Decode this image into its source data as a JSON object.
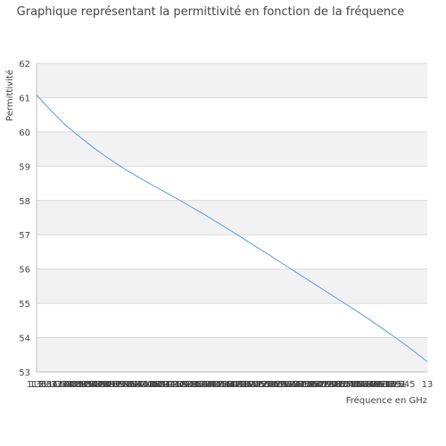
{
  "chart_data": {
    "type": "line",
    "title": "Graphique représentant la permittivité en fonction de la fréquence",
    "xlabel": "Fréquence en GHz",
    "ylabel": "Permittivité",
    "ylim": [
      53,
      62
    ],
    "yticks": [
      "53",
      "54",
      "55",
      "56",
      "57",
      "58",
      "59",
      "60",
      "61",
      "62"
    ],
    "xticks": [
      "1.3",
      "1.3636",
      "1.3673",
      "1.3727",
      "1.3764",
      "1.3782",
      "1.3809",
      "1.3827",
      "1.3845",
      "1.3854",
      "1.3864",
      "1.3873",
      "1.3891",
      "1.3909",
      "1.3918",
      "1.3927",
      "1.3936",
      "1.3945",
      "1.3964",
      "1.3982",
      "1.4",
      "1.4018",
      "1.4036",
      "1.4055",
      "1.4073",
      "1.4091",
      "1.4109",
      "1.4127",
      "1.4155",
      "1.4182",
      "1.4218",
      "1.4255",
      "1.4291",
      "1.4327",
      "1.4364",
      "1.44",
      "1.4436",
      "1.4473",
      "1.4518",
      "1.4564",
      "1.4618",
      "1.4673",
      "1.4727",
      "1.48",
      "1.4873",
      "1.4945",
      "1.5036",
      "1.5127",
      "1.5236",
      "1.5345",
      "1.5473",
      "1.56",
      "1.5764",
      "1.5927",
      "1.6127",
      "1.6345",
      "1.6618",
      "1.6945",
      "1.7364",
      "1.7873",
      "1.8509",
      "1.9291",
      "2.0218",
      "2.1345",
      "2.2727",
      "2.4364",
      "2.6273",
      "2.8545",
      "3.1218",
      "3.4345",
      "3.8018",
      "4.2345",
      "4.7455",
      "5.3491",
      "6.0636",
      "6.9182",
      "7.9455",
      "9.1891",
      "10.7",
      "12.545",
      "13"
    ],
    "series": [
      {
        "values": [
          61.08,
          60.62,
          60.2,
          59.85,
          59.52,
          59.22,
          58.94,
          58.69,
          58.45,
          58.22,
          57.98,
          57.74,
          57.49,
          57.23,
          56.97,
          56.7,
          56.43,
          56.16,
          55.89,
          55.62,
          55.35,
          55.08,
          54.81,
          54.53,
          54.24,
          53.94,
          53.63,
          53.3
        ]
      }
    ],
    "grid": true,
    "colors": {
      "line": "#5b9bd5",
      "band": "#f2f2f2",
      "grid": "#d9d9d9",
      "axis": "#bfbfbf"
    }
  }
}
